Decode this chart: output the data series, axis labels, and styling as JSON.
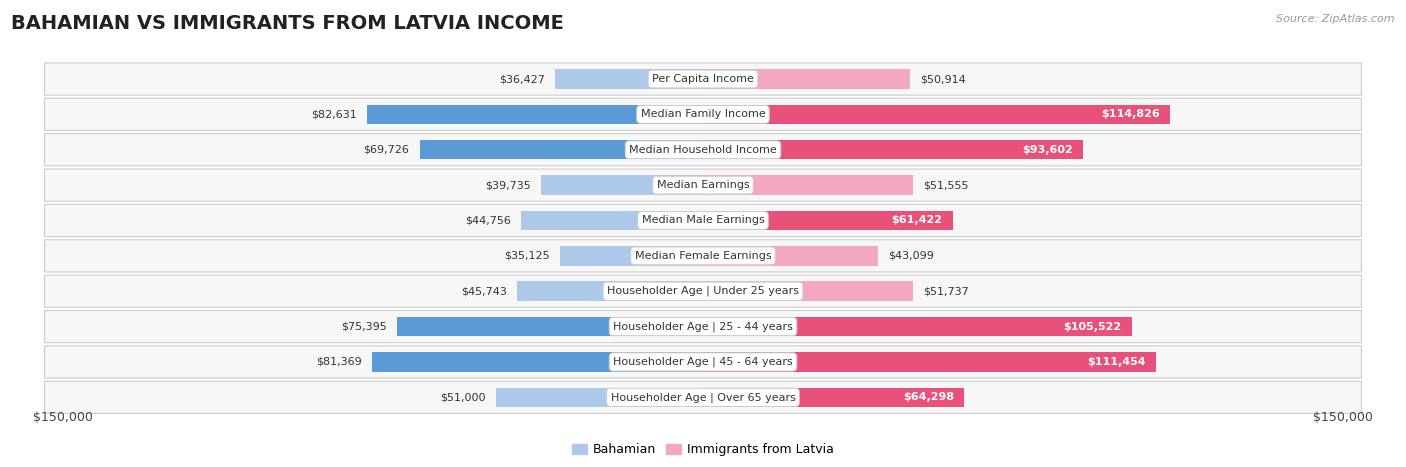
{
  "title": "BAHAMIAN VS IMMIGRANTS FROM LATVIA INCOME",
  "source": "Source: ZipAtlas.com",
  "categories": [
    "Per Capita Income",
    "Median Family Income",
    "Median Household Income",
    "Median Earnings",
    "Median Male Earnings",
    "Median Female Earnings",
    "Householder Age | Under 25 years",
    "Householder Age | 25 - 44 years",
    "Householder Age | 45 - 64 years",
    "Householder Age | Over 65 years"
  ],
  "bahamian_values": [
    36427,
    82631,
    69726,
    39735,
    44756,
    35125,
    45743,
    75395,
    81369,
    51000
  ],
  "latvia_values": [
    50914,
    114826,
    93602,
    51555,
    61422,
    43099,
    51737,
    105522,
    111454,
    64298
  ],
  "max_value": 150000,
  "bahamian_color_light": "#adc8e8",
  "bahamian_color_dark": "#5b9bd5",
  "latvia_color_light": "#f4a8c0",
  "latvia_color_dark": "#e8517a",
  "row_bg_color": "#f0f0f0",
  "row_border_color": "#d0d0d0",
  "legend_bahamian": "Bahamian",
  "legend_latvia": "Immigrants from Latvia",
  "x_label_left": "$150,000",
  "x_label_right": "$150,000",
  "dark_threshold": 60000,
  "white_label_threshold": 60000,
  "title_fontsize": 14,
  "label_fontsize": 8,
  "value_fontsize": 8
}
